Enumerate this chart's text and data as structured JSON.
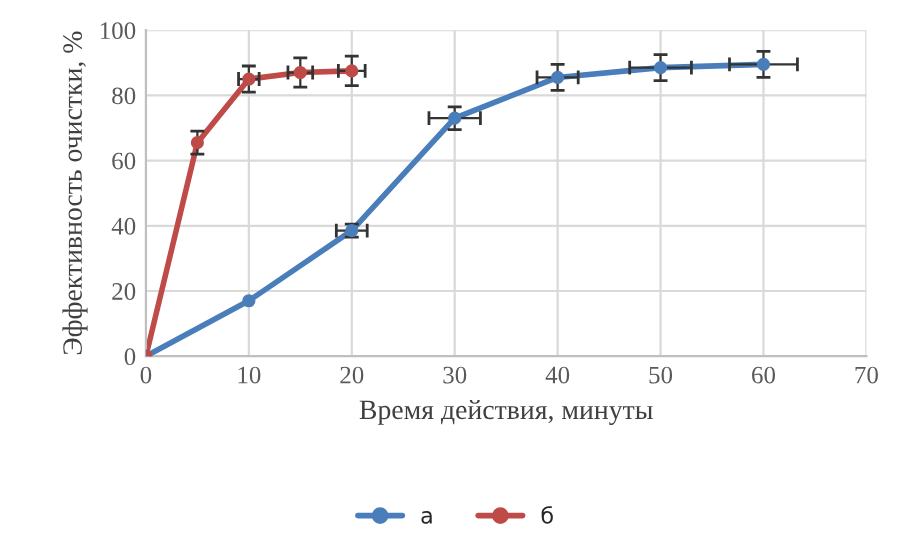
{
  "chart_data": {
    "type": "line",
    "xlabel": "Время действия, минуты",
    "ylabel": "Эффективность очистки, %",
    "xlim": [
      0,
      70
    ],
    "xticks": [
      0,
      10,
      20,
      30,
      40,
      50,
      60,
      70
    ],
    "ylim": [
      0,
      100
    ],
    "yticks": [
      0,
      20,
      40,
      60,
      80,
      100
    ],
    "grid": true,
    "legend": "bottom",
    "marker": "circle",
    "line_style": "solid",
    "series": [
      {
        "name": "а",
        "color": "#4a7ebb",
        "x": [
          0,
          10,
          20,
          30,
          40,
          50,
          60
        ],
        "values": [
          0,
          17,
          38.5,
          73,
          85.5,
          88.5,
          89.5
        ],
        "errors": [
          null,
          null,
          2,
          3.5,
          4,
          4,
          4
        ],
        "xerrors": [
          null,
          null,
          1.5,
          2.5,
          2,
          3,
          3.3
        ]
      },
      {
        "name": "б",
        "color": "#be4b48",
        "x": [
          0,
          5,
          10,
          15,
          20
        ],
        "values": [
          0,
          65.5,
          85,
          87,
          87.5
        ],
        "errors": [
          null,
          3.5,
          4,
          4.5,
          4.5
        ],
        "xerrors": [
          null,
          null,
          1,
          1.2,
          1.3
        ]
      }
    ]
  }
}
